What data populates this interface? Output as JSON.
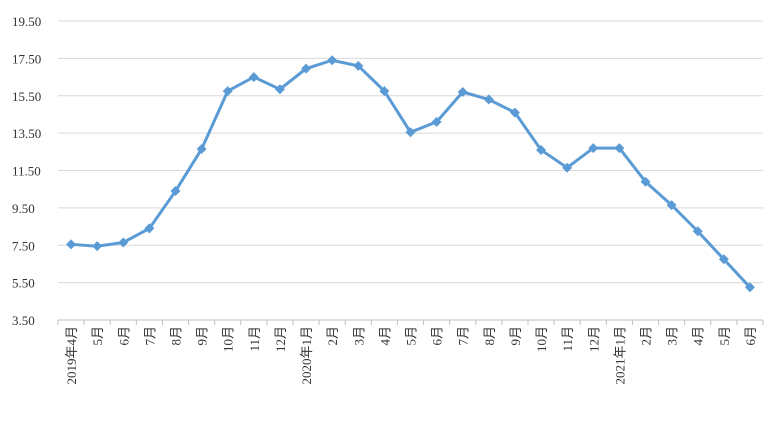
{
  "chart_data": {
    "type": "line",
    "categories": [
      "2019年4月",
      "5月",
      "6月",
      "7月",
      "8月",
      "9月",
      "10月",
      "11月",
      "12月",
      "2020年1月",
      "2月",
      "3月",
      "4月",
      "5月",
      "6月",
      "7月",
      "8月",
      "9月",
      "10月",
      "11月",
      "12月",
      "2021年1月",
      "2月",
      "3月",
      "4月",
      "5月",
      "6月"
    ],
    "values": [
      7.55,
      7.45,
      7.65,
      8.4,
      10.4,
      12.65,
      15.75,
      16.5,
      15.85,
      16.95,
      17.4,
      17.1,
      15.75,
      13.55,
      14.1,
      15.7,
      15.3,
      14.6,
      12.6,
      11.65,
      12.7,
      12.7,
      10.9,
      9.65,
      8.25,
      6.75,
      5.25
    ],
    "color": "#5b9bd5",
    "ylim": [
      3.5,
      19.5
    ],
    "yticks": [
      {
        "value": 3.5,
        "label": "3.50"
      },
      {
        "value": 5.5,
        "label": "5.50"
      },
      {
        "value": 7.5,
        "label": "7.50"
      },
      {
        "value": 9.5,
        "label": "9.50"
      },
      {
        "value": 11.5,
        "label": "11.50"
      },
      {
        "value": 13.5,
        "label": "13.50"
      },
      {
        "value": 15.5,
        "label": "15.50"
      },
      {
        "value": 17.5,
        "label": "17.50"
      },
      {
        "value": 19.5,
        "label": "19.50"
      }
    ],
    "grid": true
  }
}
